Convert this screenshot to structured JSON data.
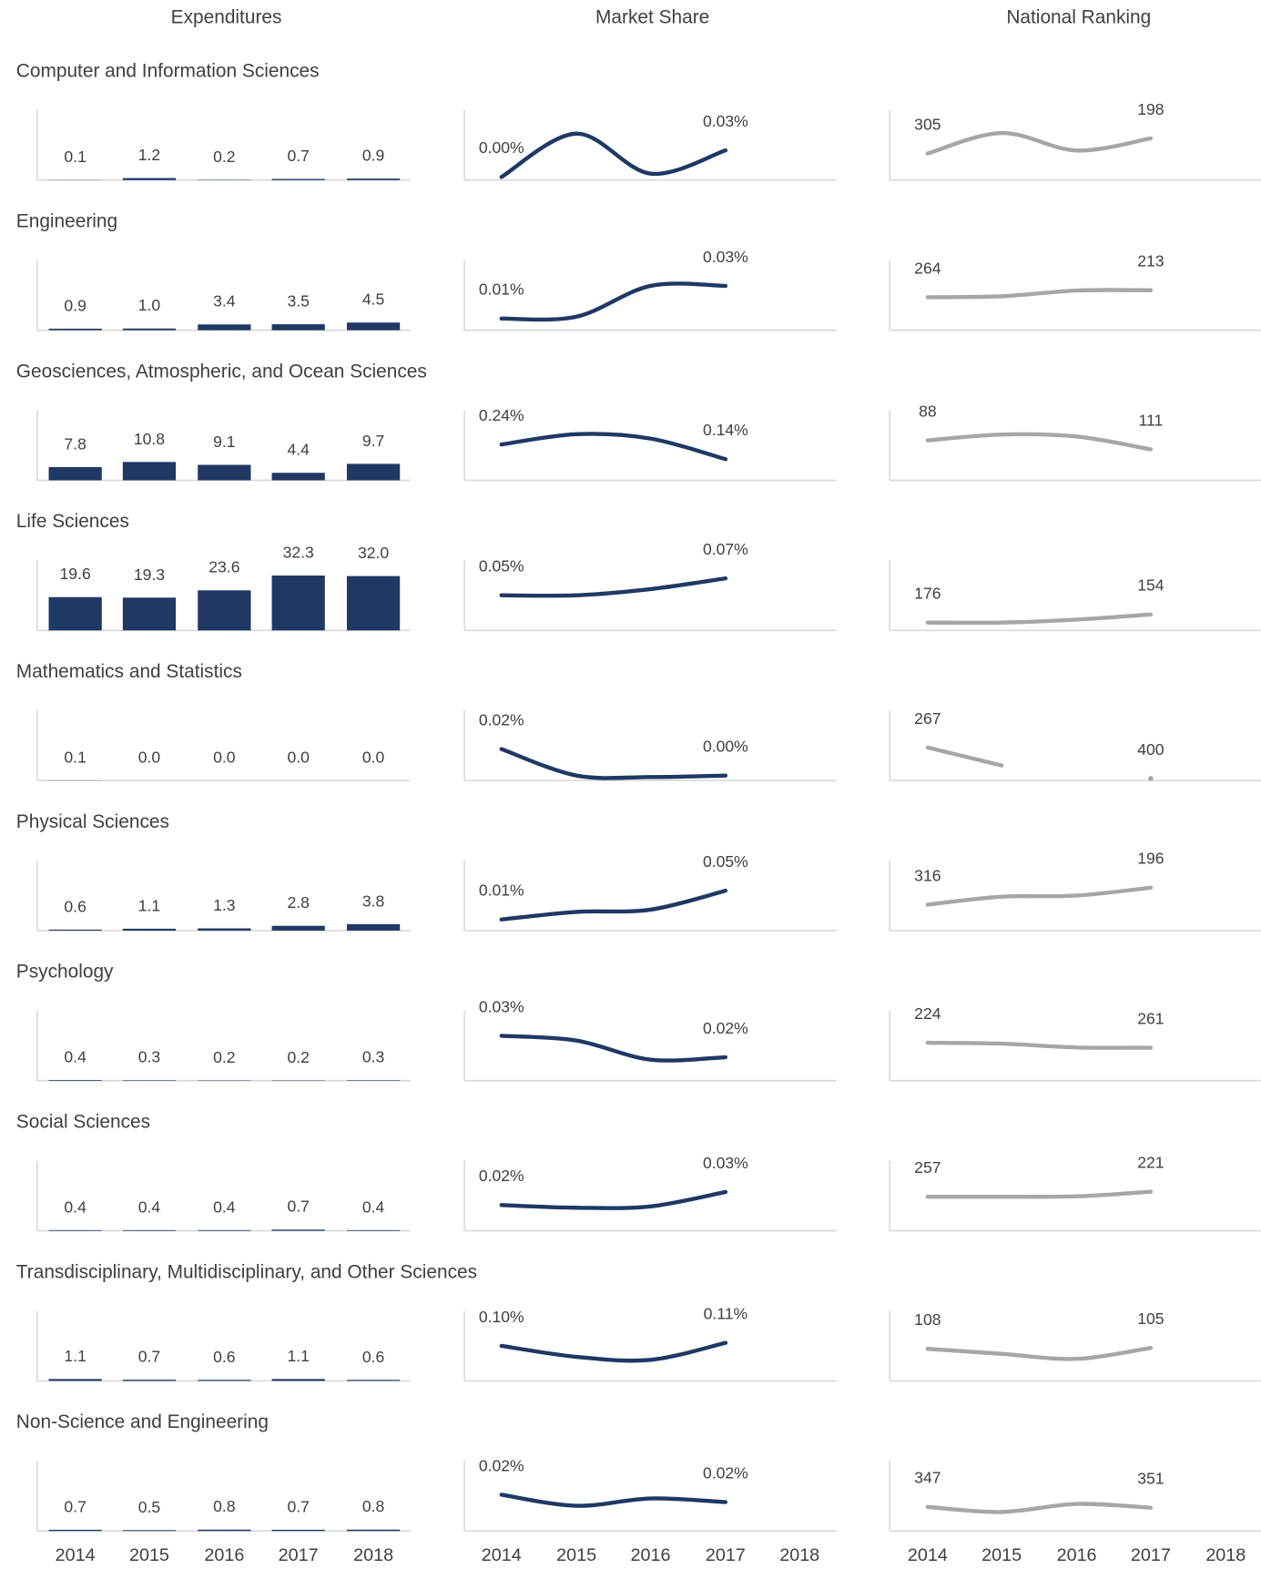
{
  "chart_data": {
    "type": "small-multiples",
    "columns": [
      "Expenditures",
      "Market Share",
      "National Ranking"
    ],
    "categories": [
      "2014",
      "2015",
      "2016",
      "2017",
      "2018"
    ],
    "bar_color": "#1f3864",
    "line_colors": [
      "#1f3864",
      "#a6a6a6"
    ],
    "expenditures_ylim": [
      0,
      33
    ],
    "rows": [
      {
        "title": "Computer and Information Sciences",
        "expenditures": {
          "values": [
            0.1,
            1.2,
            0.2,
            0.7,
            0.9
          ],
          "value_labels": [
            "0.1",
            "1.2",
            "0.2",
            "0.7",
            "0.9"
          ]
        },
        "market_share": {
          "values": [
            0.001,
            0.04,
            0.004,
            0.025
          ],
          "value_labels": [
            "0.00%",
            null,
            null,
            "0.03%"
          ],
          "ylim": [
            0,
            0.045
          ]
        },
        "ranking": {
          "values": [
            305,
            160,
            284,
            198
          ],
          "ylim": [
            480,
            125
          ]
        }
      },
      {
        "title": "Engineering",
        "expenditures": {
          "values": [
            0.9,
            1.0,
            3.4,
            3.5,
            4.5
          ],
          "value_labels": [
            "0.9",
            "1.0",
            "3.4",
            "3.5",
            "4.5"
          ]
        },
        "market_share": {
          "values": [
            0.012,
            0.013,
            0.029,
            0.029
          ],
          "value_labels": [
            "0.01%",
            null,
            null,
            "0.03%"
          ],
          "ylim": [
            0.007,
            0.033
          ]
        },
        "ranking": {
          "values": [
            264,
            257,
            215,
            213
          ],
          "ylim": [
            490,
            125
          ]
        }
      },
      {
        "title": "Geosciences, Atmospheric, and Ocean Sciences",
        "expenditures": {
          "values": [
            7.8,
            10.8,
            9.1,
            4.4,
            9.7
          ],
          "value_labels": [
            "7.8",
            "10.8",
            "9.1",
            "4.4",
            "9.7"
          ]
        },
        "market_share": {
          "values": [
            0.24,
            0.31,
            0.28,
            0.14
          ],
          "value_labels": [
            "0.24%",
            null,
            null,
            "0.14%"
          ],
          "ylim": [
            0.01,
            0.35
          ]
        },
        "ranking": {
          "values": [
            88,
            73,
            78,
            111
          ],
          "ylim": [
            185,
            57
          ]
        }
      },
      {
        "title": "Life Sciences",
        "expenditures": {
          "values": [
            19.6,
            19.3,
            23.6,
            32.3,
            32.0
          ],
          "value_labels": [
            "19.6",
            "19.3",
            "23.6",
            "32.3",
            "32.0"
          ]
        },
        "market_share": {
          "values": [
            0.05,
            0.05,
            0.058,
            0.072
          ],
          "value_labels": [
            "0.05%",
            null,
            null,
            "0.07%"
          ],
          "ylim": [
            0.007,
            0.072
          ]
        },
        "ranking": {
          "values": [
            176,
            176,
            168,
            154
          ],
          "ylim": [
            192,
            55
          ]
        }
      },
      {
        "title": "Mathematics and Statistics",
        "expenditures": {
          "values": [
            0.1,
            0,
            0,
            0,
            0
          ],
          "value_labels": [
            "0.1",
            "0.0",
            "0.0",
            "0.0",
            "0.0"
          ]
        },
        "market_share": {
          "values": [
            0.02,
            0.002,
            0.001,
            0.002
          ],
          "value_labels": [
            "0.02%",
            null,
            null,
            "0.00%"
          ],
          "ylim": [
            0,
            0.034
          ]
        },
        "ranking": {
          "values": [
            267,
            344,
            null,
            400
          ],
          "ylim": [
            400,
            185
          ]
        }
      },
      {
        "title": "Physical Sciences",
        "expenditures": {
          "values": [
            0.6,
            1.1,
            1.3,
            2.8,
            3.8
          ],
          "value_labels": [
            "0.6",
            "1.1",
            "1.3",
            "2.8",
            "3.8"
          ]
        },
        "market_share": {
          "values": [
            0.012,
            0.022,
            0.025,
            0.05
          ],
          "value_labels": [
            "0.01%",
            null,
            null,
            "0.05%"
          ],
          "ylim": [
            0,
            0.066
          ]
        },
        "ranking": {
          "values": [
            316,
            260,
            252,
            196
          ],
          "ylim": [
            485,
            132
          ]
        }
      },
      {
        "title": "Psychology",
        "expenditures": {
          "values": [
            0.4,
            0.3,
            0.2,
            0.2,
            0.3
          ],
          "value_labels": [
            "0.4",
            "0.3",
            "0.2",
            "0.2",
            "0.3"
          ]
        },
        "market_share": {
          "values": [
            0.03,
            0.028,
            0.02,
            0.021
          ],
          "value_labels": [
            "0.03%",
            null,
            null,
            "0.02%"
          ],
          "ylim": [
            0.012,
            0.033
          ]
        },
        "ranking": {
          "values": [
            224,
            231,
            259,
            261
          ],
          "ylim": [
            490,
            120
          ]
        }
      },
      {
        "title": "Social Sciences",
        "expenditures": {
          "values": [
            0.4,
            0.4,
            0.4,
            0.7,
            0.4
          ],
          "value_labels": [
            "0.4",
            "0.4",
            "0.4",
            "0.7",
            "0.4"
          ]
        },
        "market_share": {
          "values": [
            0.02,
            0.019,
            0.0195,
            0.025
          ],
          "value_labels": [
            "0.02%",
            null,
            null,
            "0.03%"
          ],
          "ylim": [
            0.011,
            0.03
          ]
        },
        "ranking": {
          "values": [
            257,
            257,
            254,
            221
          ],
          "ylim": [
            487,
            128
          ]
        }
      },
      {
        "title": "Transdisciplinary, Multidisciplinary, and Other Sciences",
        "expenditures": {
          "values": [
            1.1,
            0.7,
            0.6,
            1.1,
            0.6
          ],
          "value_labels": [
            "1.1",
            "0.7",
            "0.6",
            "1.1",
            "0.6"
          ]
        },
        "market_share": {
          "values": [
            0.104,
            0.093,
            0.09,
            0.107
          ],
          "value_labels": [
            "0.10%",
            null,
            null,
            "0.11%"
          ],
          "ylim": [
            0.071,
            0.121
          ]
        },
        "ranking": {
          "values": [
            108,
            123,
            138,
            105
          ],
          "ylim": [
            198,
            48
          ]
        }
      },
      {
        "title": "Non-Science and Engineering",
        "expenditures": {
          "values": [
            0.7,
            0.5,
            0.8,
            0.7,
            0.8
          ],
          "value_labels": [
            "0.7",
            "0.5",
            "0.8",
            "0.7",
            "0.8"
          ]
        },
        "market_share": {
          "values": [
            0.022,
            0.019,
            0.021,
            0.02
          ],
          "value_labels": [
            "0.02%",
            null,
            null,
            "0.02%"
          ],
          "ylim": [
            0.0127,
            0.0263
          ]
        },
        "ranking": {
          "values": [
            347,
            372,
            332,
            351
          ],
          "ylim": [
            457,
            207
          ]
        }
      }
    ]
  }
}
